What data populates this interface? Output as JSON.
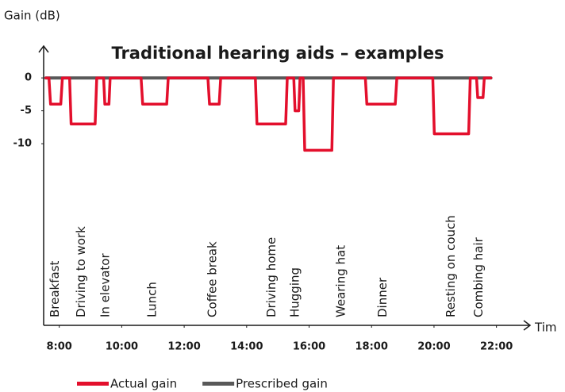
{
  "chart_data": {
    "type": "line",
    "title": "Traditional hearing aids – examples",
    "y_label": "Gain (dB)",
    "x_label": "Tim",
    "xlim": [
      7.5,
      23
    ],
    "xticks": [
      {
        "value": 8,
        "label": "8:00"
      },
      {
        "value": 10,
        "label": "10:00"
      },
      {
        "value": 12,
        "label": "12:00"
      },
      {
        "value": 14,
        "label": "14:00"
      },
      {
        "value": 16,
        "label": "16:00"
      },
      {
        "value": 18,
        "label": "18:00"
      },
      {
        "value": 20,
        "label": "20:00"
      },
      {
        "value": 22,
        "label": "22:00"
      }
    ],
    "ylim": [
      -37.6,
      4.6
    ],
    "yticks": [
      0,
      -5,
      -10
    ],
    "legend": "bottom",
    "series": [
      {
        "name": "Prescribed gain",
        "color": "#595959",
        "x": [
          7.57,
          21.82
        ],
        "values": [
          0,
          0
        ]
      },
      {
        "name": "Actual gain",
        "color": "#e30f2c",
        "x": [
          7.57,
          7.67,
          7.72,
          8.05,
          8.1,
          8.33,
          8.38,
          9.15,
          9.2,
          9.42,
          9.46,
          9.59,
          9.63,
          10.62,
          10.67,
          11.44,
          11.49,
          12.76,
          12.81,
          13.12,
          13.17,
          14.28,
          14.33,
          15.25,
          15.3,
          15.51,
          15.55,
          15.67,
          15.71,
          15.81,
          15.86,
          16.73,
          16.78,
          17.8,
          17.85,
          18.76,
          18.81,
          19.96,
          20.01,
          21.11,
          21.16,
          21.36,
          21.4,
          21.57,
          21.61,
          21.82
        ],
        "values": [
          0,
          0,
          -4,
          -4,
          0,
          0,
          -7,
          -7,
          0,
          0,
          -4,
          -4,
          0,
          0,
          -4,
          -4,
          0,
          0,
          -4,
          -4,
          0,
          0,
          -7,
          -7,
          0,
          0,
          -5,
          -5,
          0,
          0,
          -11,
          -11,
          0,
          0,
          -4,
          -4,
          0,
          0,
          -8.5,
          -8.5,
          0,
          0,
          -3,
          -3,
          0,
          0
        ]
      }
    ],
    "annotations": [
      {
        "text": "Breakfast",
        "x": 7.87
      },
      {
        "text": "Driving to work",
        "x": 8.71
      },
      {
        "text": "In elevator",
        "x": 9.48
      },
      {
        "text": "Lunch",
        "x": 10.98
      },
      {
        "text": "Coffee break",
        "x": 12.91
      },
      {
        "text": "Driving home",
        "x": 14.8
      },
      {
        "text": "Hugging",
        "x": 15.56
      },
      {
        "text": "Wearing hat",
        "x": 17.03
      },
      {
        "text": "Dinner",
        "x": 18.36
      },
      {
        "text": "Resting on couch",
        "x": 20.55
      },
      {
        "text": "Combing hair",
        "x": 21.44
      }
    ]
  }
}
